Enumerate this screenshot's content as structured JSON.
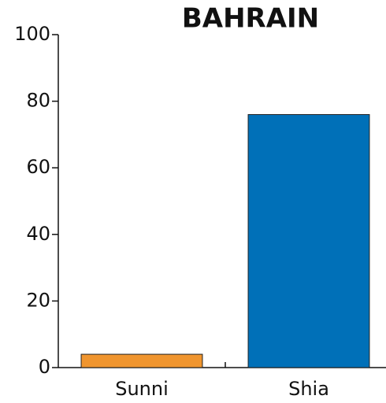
{
  "chart_data": {
    "type": "bar",
    "title": "BAHRAIN",
    "categories": [
      "Sunni",
      "Shia"
    ],
    "values": [
      4,
      76
    ],
    "colors": [
      "#f0952e",
      "#0070b8"
    ],
    "ylim": [
      0,
      100
    ],
    "yticks": [
      0,
      20,
      40,
      60,
      80,
      100
    ]
  }
}
